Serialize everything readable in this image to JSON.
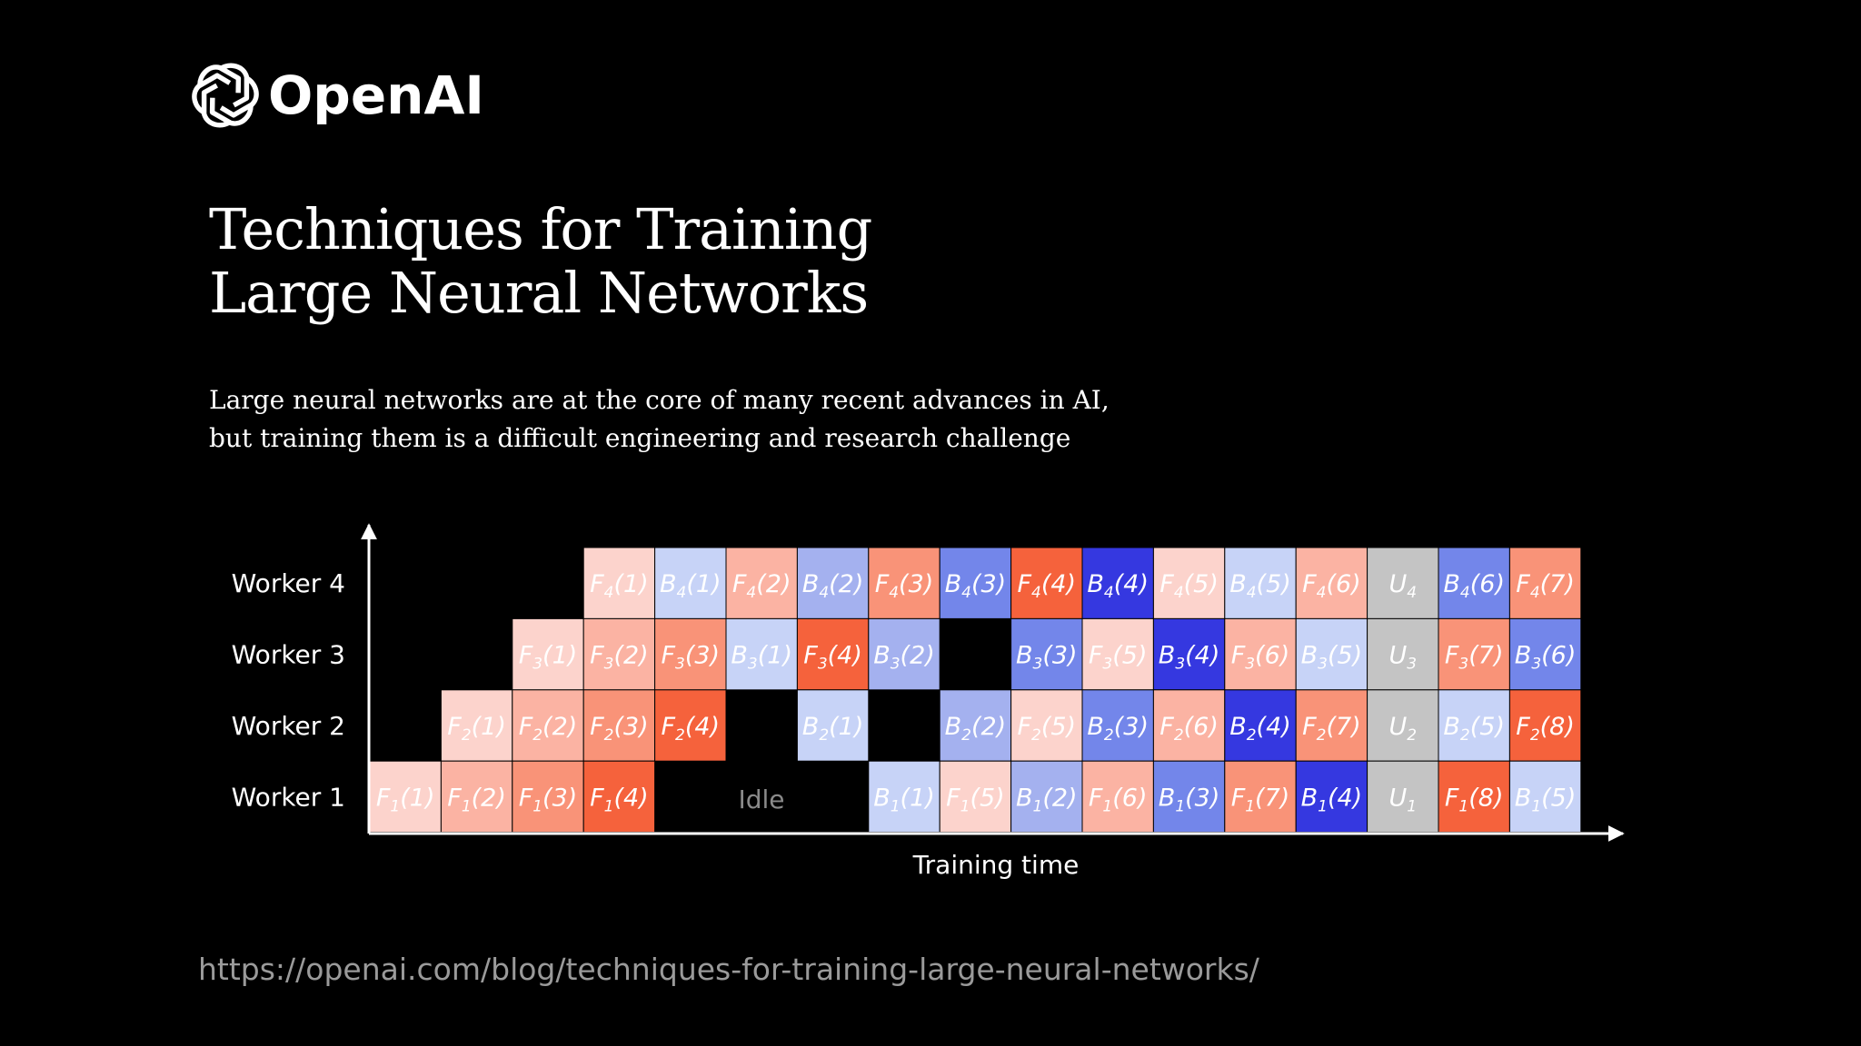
{
  "brand": {
    "name": "OpenAI"
  },
  "title_lines": [
    "Techniques for Training",
    "Large Neural Networks"
  ],
  "subtitle_lines": [
    "Large neural networks are at the core of many recent advances in AI,",
    "but training them is a difficult engineering and research challenge"
  ],
  "diagram": {
    "x_axis_label": "Training time",
    "idle_label": "Idle",
    "workers": [
      "Worker 4",
      "Worker 3",
      "Worker 2",
      "Worker 1"
    ],
    "rows": [
      {
        "worker": "Worker 4",
        "cells": [
          {
            "col": 3,
            "op": "F",
            "sub": "4",
            "arg": "(1)",
            "color": "#fcd3cc"
          },
          {
            "col": 4,
            "op": "B",
            "sub": "4",
            "arg": "(1)",
            "color": "#c7d3f7"
          },
          {
            "col": 5,
            "op": "F",
            "sub": "4",
            "arg": "(2)",
            "color": "#fbb3a3"
          },
          {
            "col": 6,
            "op": "B",
            "sub": "4",
            "arg": "(2)",
            "color": "#a4b1ef"
          },
          {
            "col": 7,
            "op": "F",
            "sub": "4",
            "arg": "(3)",
            "color": "#f99378"
          },
          {
            "col": 8,
            "op": "B",
            "sub": "4",
            "arg": "(3)",
            "color": "#7386ea"
          },
          {
            "col": 9,
            "op": "F",
            "sub": "4",
            "arg": "(4)",
            "color": "#f5623c"
          },
          {
            "col": 10,
            "op": "B",
            "sub": "4",
            "arg": "(4)",
            "color": "#3538e0"
          },
          {
            "col": 11,
            "op": "F",
            "sub": "4",
            "arg": "(5)",
            "color": "#fcd3cc"
          },
          {
            "col": 12,
            "op": "B",
            "sub": "4",
            "arg": "(5)",
            "color": "#c7d3f7"
          },
          {
            "col": 13,
            "op": "F",
            "sub": "4",
            "arg": "(6)",
            "color": "#fbb3a3"
          },
          {
            "col": 14,
            "op": "U",
            "sub": "4",
            "arg": "",
            "color": "#c4c4c4"
          },
          {
            "col": 15,
            "op": "B",
            "sub": "4",
            "arg": "(6)",
            "color": "#7386ea"
          },
          {
            "col": 16,
            "op": "F",
            "sub": "4",
            "arg": "(7)",
            "color": "#f99378"
          }
        ]
      },
      {
        "worker": "Worker 3",
        "cells": [
          {
            "col": 2,
            "op": "F",
            "sub": "3",
            "arg": "(1)",
            "color": "#fcd3cc"
          },
          {
            "col": 3,
            "op": "F",
            "sub": "3",
            "arg": "(2)",
            "color": "#fbb3a3"
          },
          {
            "col": 4,
            "op": "F",
            "sub": "3",
            "arg": "(3)",
            "color": "#f99378"
          },
          {
            "col": 5,
            "op": "B",
            "sub": "3",
            "arg": "(1)",
            "color": "#c7d3f7"
          },
          {
            "col": 6,
            "op": "F",
            "sub": "3",
            "arg": "(4)",
            "color": "#f5623c"
          },
          {
            "col": 7,
            "op": "B",
            "sub": "3",
            "arg": "(2)",
            "color": "#a4b1ef"
          },
          {
            "col": 9,
            "op": "B",
            "sub": "3",
            "arg": "(3)",
            "color": "#7386ea"
          },
          {
            "col": 10,
            "op": "F",
            "sub": "3",
            "arg": "(5)",
            "color": "#fcd3cc"
          },
          {
            "col": 11,
            "op": "B",
            "sub": "3",
            "arg": "(4)",
            "color": "#3538e0"
          },
          {
            "col": 12,
            "op": "F",
            "sub": "3",
            "arg": "(6)",
            "color": "#fbb3a3"
          },
          {
            "col": 13,
            "op": "B",
            "sub": "3",
            "arg": "(5)",
            "color": "#c7d3f7"
          },
          {
            "col": 14,
            "op": "U",
            "sub": "3",
            "arg": "",
            "color": "#c4c4c4"
          },
          {
            "col": 15,
            "op": "F",
            "sub": "3",
            "arg": "(7)",
            "color": "#f99378"
          },
          {
            "col": 16,
            "op": "B",
            "sub": "3",
            "arg": "(6)",
            "color": "#7386ea"
          }
        ]
      },
      {
        "worker": "Worker 2",
        "cells": [
          {
            "col": 1,
            "op": "F",
            "sub": "2",
            "arg": "(1)",
            "color": "#fcd3cc"
          },
          {
            "col": 2,
            "op": "F",
            "sub": "2",
            "arg": "(2)",
            "color": "#fbb3a3"
          },
          {
            "col": 3,
            "op": "F",
            "sub": "2",
            "arg": "(3)",
            "color": "#f99378"
          },
          {
            "col": 4,
            "op": "F",
            "sub": "2",
            "arg": "(4)",
            "color": "#f5623c"
          },
          {
            "col": 6,
            "op": "B",
            "sub": "2",
            "arg": "(1)",
            "color": "#c7d3f7"
          },
          {
            "col": 8,
            "op": "B",
            "sub": "2",
            "arg": "(2)",
            "color": "#a4b1ef"
          },
          {
            "col": 9,
            "op": "F",
            "sub": "2",
            "arg": "(5)",
            "color": "#fcd3cc"
          },
          {
            "col": 10,
            "op": "B",
            "sub": "2",
            "arg": "(3)",
            "color": "#7386ea"
          },
          {
            "col": 11,
            "op": "F",
            "sub": "2",
            "arg": "(6)",
            "color": "#fbb3a3"
          },
          {
            "col": 12,
            "op": "B",
            "sub": "2",
            "arg": "(4)",
            "color": "#3538e0"
          },
          {
            "col": 13,
            "op": "F",
            "sub": "2",
            "arg": "(7)",
            "color": "#f99378"
          },
          {
            "col": 14,
            "op": "U",
            "sub": "2",
            "arg": "",
            "color": "#c4c4c4"
          },
          {
            "col": 15,
            "op": "B",
            "sub": "2",
            "arg": "(5)",
            "color": "#c7d3f7"
          },
          {
            "col": 16,
            "op": "F",
            "sub": "2",
            "arg": "(8)",
            "color": "#f5623c"
          }
        ]
      },
      {
        "worker": "Worker 1",
        "cells": [
          {
            "col": 0,
            "op": "F",
            "sub": "1",
            "arg": "(1)",
            "color": "#fcd3cc"
          },
          {
            "col": 1,
            "op": "F",
            "sub": "1",
            "arg": "(2)",
            "color": "#fbb3a3"
          },
          {
            "col": 2,
            "op": "F",
            "sub": "1",
            "arg": "(3)",
            "color": "#f99378"
          },
          {
            "col": 3,
            "op": "F",
            "sub": "1",
            "arg": "(4)",
            "color": "#f5623c"
          },
          {
            "col": 7,
            "op": "B",
            "sub": "1",
            "arg": "(1)",
            "color": "#c7d3f7"
          },
          {
            "col": 8,
            "op": "F",
            "sub": "1",
            "arg": "(5)",
            "color": "#fcd3cc"
          },
          {
            "col": 9,
            "op": "B",
            "sub": "1",
            "arg": "(2)",
            "color": "#a4b1ef"
          },
          {
            "col": 10,
            "op": "F",
            "sub": "1",
            "arg": "(6)",
            "color": "#fbb3a3"
          },
          {
            "col": 11,
            "op": "B",
            "sub": "1",
            "arg": "(3)",
            "color": "#7386ea"
          },
          {
            "col": 12,
            "op": "F",
            "sub": "1",
            "arg": "(7)",
            "color": "#f99378"
          },
          {
            "col": 13,
            "op": "B",
            "sub": "1",
            "arg": "(4)",
            "color": "#3538e0"
          },
          {
            "col": 14,
            "op": "U",
            "sub": "1",
            "arg": "",
            "color": "#c4c4c4"
          },
          {
            "col": 15,
            "op": "F",
            "sub": "1",
            "arg": "(8)",
            "color": "#f5623c"
          },
          {
            "col": 16,
            "op": "B",
            "sub": "1",
            "arg": "(5)",
            "color": "#c7d3f7"
          }
        ]
      }
    ]
  },
  "source_url": "https://openai.com/blog/techniques-for-training-large-neural-networks/"
}
